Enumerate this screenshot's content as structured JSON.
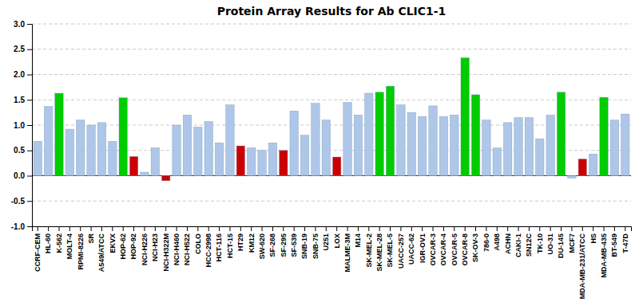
{
  "chart_data": {
    "type": "bar",
    "title": "Protein Array Results for Ab CLIC1-1",
    "categories": [
      "CCRF-CEM",
      "HL-60",
      "K-562",
      "MOLT-4",
      "RPMI-8226",
      "SR",
      "A549/ATCC",
      "EKVX",
      "HOP-62",
      "HOP-92",
      "NCI-H226",
      "NCI-H23",
      "NCI-H322M",
      "NCI-H460",
      "NCI-H522",
      "COLO",
      "HCC-2998",
      "HCT-116",
      "HCT-15",
      "HT29",
      "KM12",
      "SW-620",
      "SF-268",
      "SF-295",
      "SF-539",
      "SNB-19",
      "SNB-75",
      "U251",
      "LOX",
      "MALME-3M",
      "M14",
      "SK-MEL-2",
      "SK-MEL-28",
      "SK-MEL-5",
      "UACC-257",
      "UACC-62",
      "IGR-OV1",
      "OVCAR-3",
      "OVCAR-4",
      "OVCAR-5",
      "OVCAR-8",
      "SK-OV-3",
      "786-0",
      "A498",
      "ACHN",
      "CAKI-1",
      "SN12C",
      "TK-10",
      "UO-31",
      "DU-145",
      "MCF7",
      "MDA-MB-231/ATCC",
      "HS",
      "MDA-MB-435",
      "BT-549",
      "T-47D"
    ],
    "values": [
      0.68,
      1.37,
      1.63,
      0.92,
      1.1,
      1.0,
      1.05,
      0.68,
      1.54,
      0.38,
      0.07,
      0.55,
      -0.1,
      1.0,
      1.2,
      0.96,
      1.07,
      0.65,
      1.4,
      0.59,
      0.55,
      0.5,
      0.65,
      0.5,
      1.28,
      0.8,
      1.43,
      1.1,
      0.37,
      1.45,
      1.2,
      1.63,
      1.65,
      1.77,
      1.4,
      1.25,
      1.17,
      1.38,
      1.17,
      1.2,
      2.33,
      1.6,
      1.1,
      0.55,
      1.05,
      1.15,
      1.15,
      0.73,
      1.2,
      1.65,
      -0.05,
      0.33,
      0.43,
      1.55,
      1.1,
      1.22
    ],
    "colors": [
      "#aec6e8",
      "#aec6e8",
      "#00cc00",
      "#aec6e8",
      "#aec6e8",
      "#aec6e8",
      "#aec6e8",
      "#aec6e8",
      "#00cc00",
      "#cc0000",
      "#aec6e8",
      "#aec6e8",
      "#cc0000",
      "#aec6e8",
      "#aec6e8",
      "#aec6e8",
      "#aec6e8",
      "#aec6e8",
      "#aec6e8",
      "#cc0000",
      "#aec6e8",
      "#aec6e8",
      "#aec6e8",
      "#cc0000",
      "#aec6e8",
      "#aec6e8",
      "#aec6e8",
      "#aec6e8",
      "#cc0000",
      "#aec6e8",
      "#aec6e8",
      "#aec6e8",
      "#00cc00",
      "#00cc00",
      "#aec6e8",
      "#aec6e8",
      "#aec6e8",
      "#aec6e8",
      "#aec6e8",
      "#aec6e8",
      "#00cc00",
      "#00cc00",
      "#aec6e8",
      "#aec6e8",
      "#aec6e8",
      "#aec6e8",
      "#aec6e8",
      "#aec6e8",
      "#aec6e8",
      "#00cc00",
      "#aec6e8",
      "#cc0000",
      "#aec6e8",
      "#00cc00",
      "#aec6e8",
      "#aec6e8"
    ],
    "ylim": [
      -1.0,
      3.0
    ],
    "yticks": [
      {
        "value": -1.0,
        "label": "-1.0"
      },
      -0.5,
      {
        "value": 0.0,
        "label": "0.0"
      },
      0.5,
      {
        "value": 1.0,
        "label": "1.0"
      },
      1.5,
      {
        "value": 2.0,
        "label": "2.0"
      },
      2.5,
      {
        "value": 3.0,
        "label": "3.0"
      }
    ],
    "grid": true
  }
}
